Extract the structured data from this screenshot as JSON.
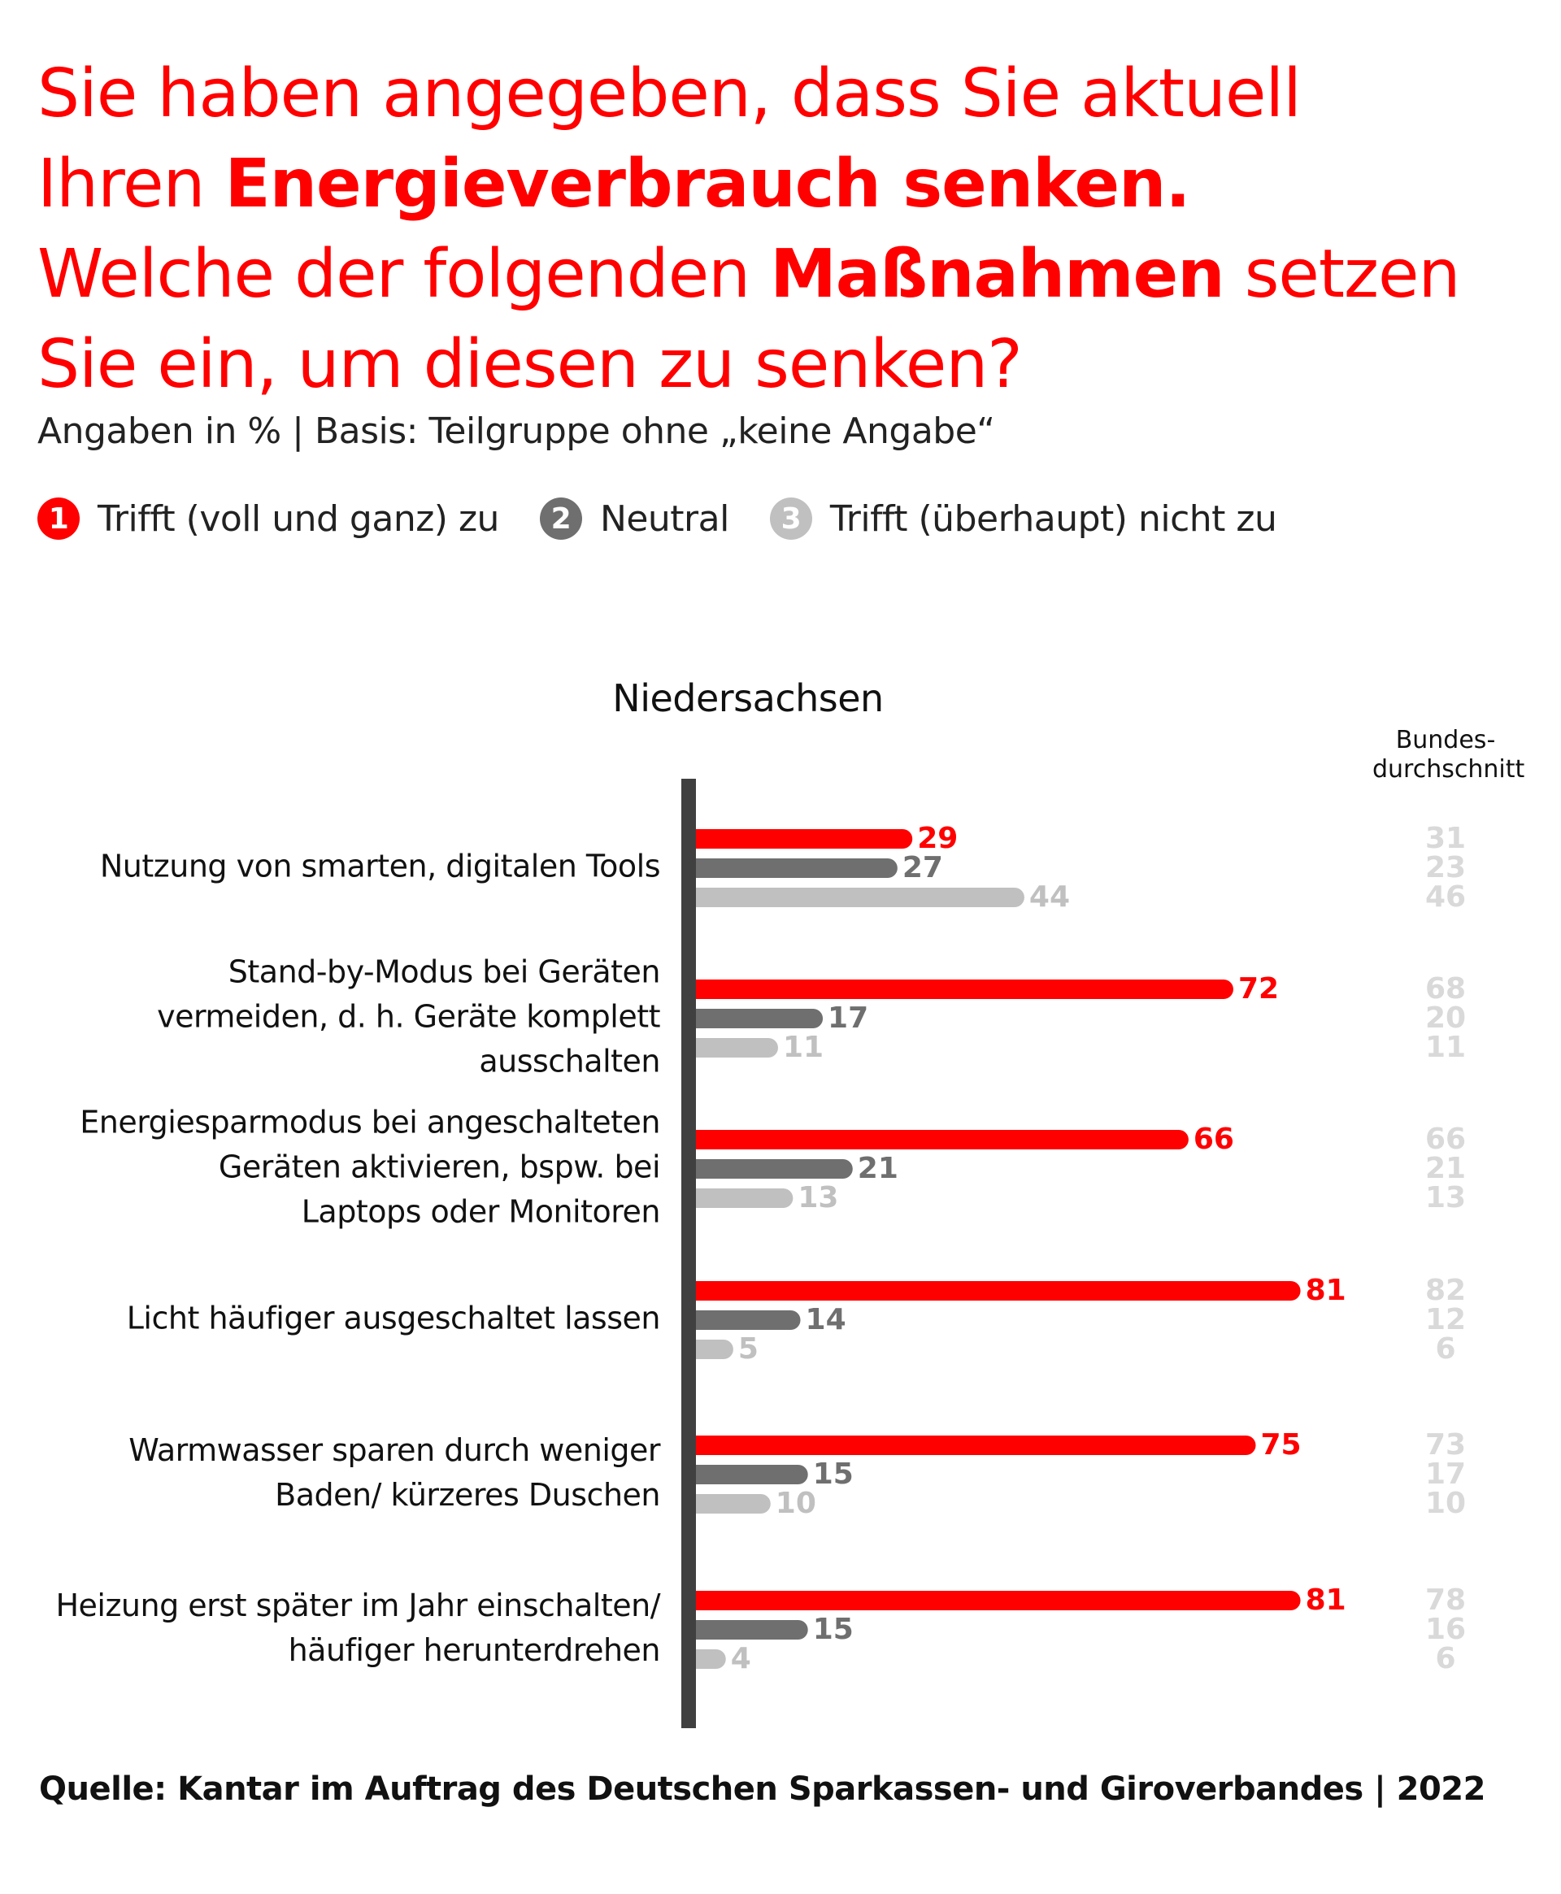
{
  "title": {
    "line1": "Sie haben angegeben, dass Sie aktuell",
    "line2_regular": "Ihren ",
    "line2_bold": "Energieverbrauch senken.",
    "line3_regular_a": "Welche der folgenden ",
    "line3_bold": "Maßnahmen",
    "line3_regular_b": " setzen",
    "line4": "Sie ein, um diesen zu senken?"
  },
  "subtitle": "Angaben in % | Basis: Teilgruppe ohne „keine Angabe“",
  "legend": [
    {
      "number": "1",
      "label": "Trifft (voll und ganz) zu",
      "color": "#ff0000"
    },
    {
      "number": "2",
      "label": "Neutral",
      "color": "#6f6f6f"
    },
    {
      "number": "3",
      "label": "Trifft (überhaupt) nicht zu",
      "color": "#c0c0c0"
    }
  ],
  "region_title": "Niedersachsen",
  "benchmark_header": {
    "line1": "Bundes-",
    "line2": "durchschnitt"
  },
  "footer": "Quelle: Kantar im Auftrag des Deutschen Sparkassen- und Giroverbandes | 2022",
  "colors": {
    "agree": "#ff0000",
    "neutral": "#6f6f6f",
    "disagree": "#c0c0c0",
    "benchmark_text": "#d9d9d9",
    "axis": "#404040"
  },
  "chart_data": {
    "type": "bar",
    "orientation": "horizontal",
    "title": "Niedersachsen",
    "xlabel": "",
    "ylabel": "",
    "xlim": [
      0,
      100
    ],
    "grid": false,
    "legend_position": "top-left",
    "categories": [
      [
        "Nutzung von smarten, digitalen Tools"
      ],
      [
        "Stand-by-Modus bei Geräten",
        "vermeiden, d. h. Geräte komplett",
        "ausschalten"
      ],
      [
        "Energiesparmodus bei angeschalteten",
        "Geräten aktivieren, bspw. bei",
        "Laptops oder Monitoren"
      ],
      [
        "Licht häufiger ausgeschaltet lassen"
      ],
      [
        "Warmwasser sparen durch weniger",
        "Baden/ kürzeres Duschen"
      ],
      [
        "Heizung erst später im Jahr einschalten/",
        "häufiger herunterdrehen"
      ]
    ],
    "series": [
      {
        "name": "Trifft (voll und ganz) zu",
        "values": [
          29,
          72,
          66,
          81,
          75,
          81
        ]
      },
      {
        "name": "Neutral",
        "values": [
          27,
          17,
          21,
          14,
          15,
          15
        ]
      },
      {
        "name": "Trifft (überhaupt) nicht zu",
        "values": [
          44,
          11,
          13,
          5,
          10,
          4
        ]
      }
    ],
    "benchmark": {
      "name": "Bundesdurchschnitt",
      "series": [
        {
          "name": "Trifft (voll und ganz) zu",
          "values": [
            31,
            68,
            66,
            82,
            73,
            78
          ]
        },
        {
          "name": "Neutral",
          "values": [
            23,
            20,
            21,
            12,
            17,
            16
          ]
        },
        {
          "name": "Trifft (überhaupt) nicht zu",
          "values": [
            46,
            11,
            13,
            6,
            10,
            6
          ]
        }
      ]
    }
  }
}
